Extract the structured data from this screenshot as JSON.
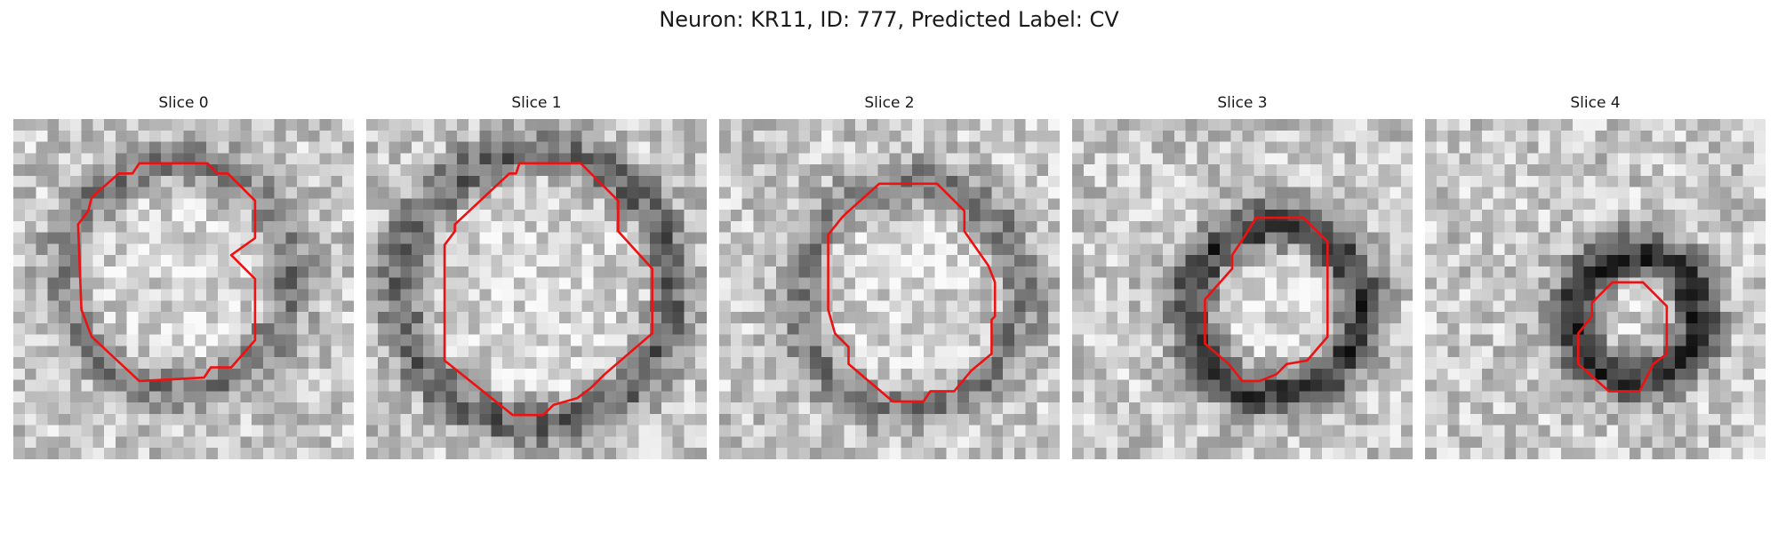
{
  "figure": {
    "title": "Neuron: KR11, ID: 777, Predicted Label: CV"
  },
  "panels": [
    {
      "title": "Slice 0",
      "ring_radius": 0.33,
      "ring_strength": 0.3,
      "center": [
        0.48,
        0.46
      ],
      "seed": 11,
      "contour": [
        [
          0.37,
          0.13
        ],
        [
          0.57,
          0.13
        ],
        [
          0.6,
          0.16
        ],
        [
          0.63,
          0.16
        ],
        [
          0.71,
          0.24
        ],
        [
          0.71,
          0.35
        ],
        [
          0.64,
          0.4
        ],
        [
          0.71,
          0.47
        ],
        [
          0.71,
          0.65
        ],
        [
          0.64,
          0.73
        ],
        [
          0.58,
          0.73
        ],
        [
          0.56,
          0.76
        ],
        [
          0.37,
          0.77
        ],
        [
          0.23,
          0.64
        ],
        [
          0.2,
          0.56
        ],
        [
          0.19,
          0.31
        ],
        [
          0.22,
          0.27
        ],
        [
          0.23,
          0.23
        ],
        [
          0.31,
          0.16
        ],
        [
          0.35,
          0.16
        ]
      ]
    },
    {
      "title": "Slice 1",
      "ring_radius": 0.4,
      "ring_strength": 0.38,
      "center": [
        0.5,
        0.5
      ],
      "seed": 23,
      "contour": [
        [
          0.45,
          0.13
        ],
        [
          0.63,
          0.13
        ],
        [
          0.74,
          0.24
        ],
        [
          0.74,
          0.33
        ],
        [
          0.84,
          0.44
        ],
        [
          0.84,
          0.63
        ],
        [
          0.7,
          0.75
        ],
        [
          0.66,
          0.79
        ],
        [
          0.62,
          0.82
        ],
        [
          0.55,
          0.84
        ],
        [
          0.52,
          0.87
        ],
        [
          0.43,
          0.87
        ],
        [
          0.23,
          0.71
        ],
        [
          0.23,
          0.37
        ],
        [
          0.26,
          0.33
        ],
        [
          0.26,
          0.31
        ],
        [
          0.42,
          0.16
        ],
        [
          0.44,
          0.16
        ]
      ]
    },
    {
      "title": "Slice 2",
      "ring_radius": 0.33,
      "ring_strength": 0.28,
      "center": [
        0.56,
        0.52
      ],
      "seed": 37,
      "contour": [
        [
          0.47,
          0.19
        ],
        [
          0.64,
          0.19
        ],
        [
          0.72,
          0.27
        ],
        [
          0.72,
          0.33
        ],
        [
          0.79,
          0.43
        ],
        [
          0.81,
          0.48
        ],
        [
          0.81,
          0.58
        ],
        [
          0.8,
          0.59
        ],
        [
          0.8,
          0.69
        ],
        [
          0.74,
          0.74
        ],
        [
          0.69,
          0.8
        ],
        [
          0.62,
          0.8
        ],
        [
          0.6,
          0.83
        ],
        [
          0.51,
          0.83
        ],
        [
          0.38,
          0.72
        ],
        [
          0.38,
          0.67
        ],
        [
          0.34,
          0.63
        ],
        [
          0.32,
          0.56
        ],
        [
          0.32,
          0.34
        ],
        [
          0.36,
          0.29
        ],
        [
          0.37,
          0.28
        ]
      ]
    },
    {
      "title": "Slice 3",
      "ring_radius": 0.25,
      "ring_strength": 0.55,
      "center": [
        0.6,
        0.56
      ],
      "seed": 49,
      "contour": [
        [
          0.54,
          0.29
        ],
        [
          0.68,
          0.29
        ],
        [
          0.75,
          0.36
        ],
        [
          0.75,
          0.64
        ],
        [
          0.69,
          0.71
        ],
        [
          0.63,
          0.72
        ],
        [
          0.6,
          0.75
        ],
        [
          0.55,
          0.77
        ],
        [
          0.5,
          0.77
        ],
        [
          0.46,
          0.72
        ],
        [
          0.39,
          0.66
        ],
        [
          0.39,
          0.53
        ],
        [
          0.47,
          0.44
        ],
        [
          0.47,
          0.4
        ],
        [
          0.51,
          0.34
        ]
      ]
    },
    {
      "title": "Slice 4",
      "ring_radius": 0.18,
      "ring_strength": 0.6,
      "center": [
        0.62,
        0.58
      ],
      "seed": 61,
      "contour": [
        [
          0.55,
          0.48
        ],
        [
          0.64,
          0.48
        ],
        [
          0.71,
          0.55
        ],
        [
          0.71,
          0.69
        ],
        [
          0.67,
          0.72
        ],
        [
          0.63,
          0.8
        ],
        [
          0.54,
          0.8
        ],
        [
          0.45,
          0.72
        ],
        [
          0.45,
          0.63
        ],
        [
          0.49,
          0.58
        ],
        [
          0.49,
          0.54
        ]
      ]
    }
  ],
  "colors": {
    "contour": "#ee1111",
    "title": "#1a1a1a"
  }
}
